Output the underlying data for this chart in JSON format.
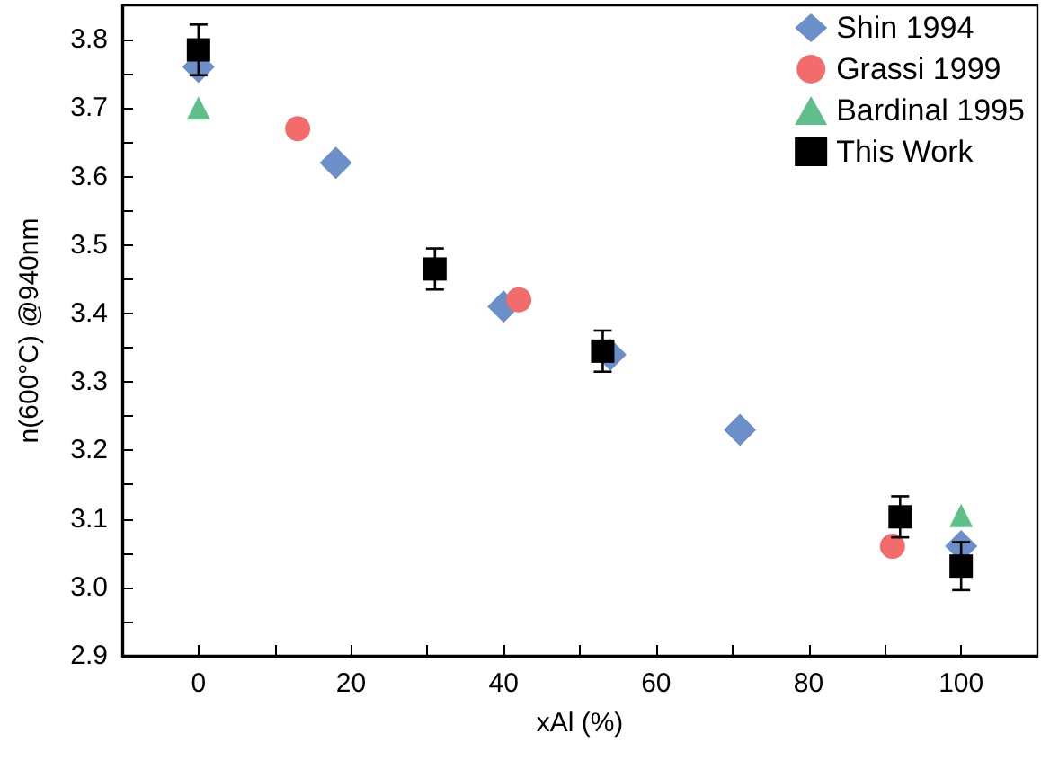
{
  "chart_data": {
    "type": "scatter",
    "xlabel": "xAl (%)",
    "ylabel": "n(600°C) @940nm",
    "xlim": [
      -10,
      110
    ],
    "xticks": [
      0,
      20,
      40,
      60,
      80,
      100
    ],
    "ylim": [
      2.9,
      3.85
    ],
    "yticks": [
      2.9,
      {
        "value": 3,
        "label": "3.0"
      },
      3.1,
      3.2,
      3.3,
      3.4,
      3.5,
      3.6,
      3.7,
      3.8
    ],
    "legend": "top right",
    "grid": false,
    "series": [
      {
        "name": "Shin 1994",
        "color": "#6a8fc9",
        "marker": "diamond",
        "x": [
          0,
          18,
          40,
          54,
          71,
          100
        ],
        "values": [
          3.76,
          3.62,
          3.41,
          3.34,
          3.23,
          3.06
        ]
      },
      {
        "name": "Grassi 1999",
        "color": "#f26c6c",
        "marker": "circle",
        "x": [
          13,
          42,
          91
        ],
        "values": [
          3.67,
          3.42,
          3.06
        ]
      },
      {
        "name": "Bardinal 1995",
        "color": "#5fbf8a",
        "marker": "triangle",
        "x": [
          0,
          100
        ],
        "values": [
          3.7,
          3.105
        ]
      },
      {
        "name": "This Work",
        "color": "#000000",
        "marker": "square",
        "x": [
          0,
          31,
          53,
          92,
          100
        ],
        "values": [
          3.785,
          3.465,
          3.345,
          3.103,
          3.031
        ],
        "errors": [
          0.037,
          0.03,
          0.03,
          0.03,
          0.035
        ]
      }
    ]
  }
}
